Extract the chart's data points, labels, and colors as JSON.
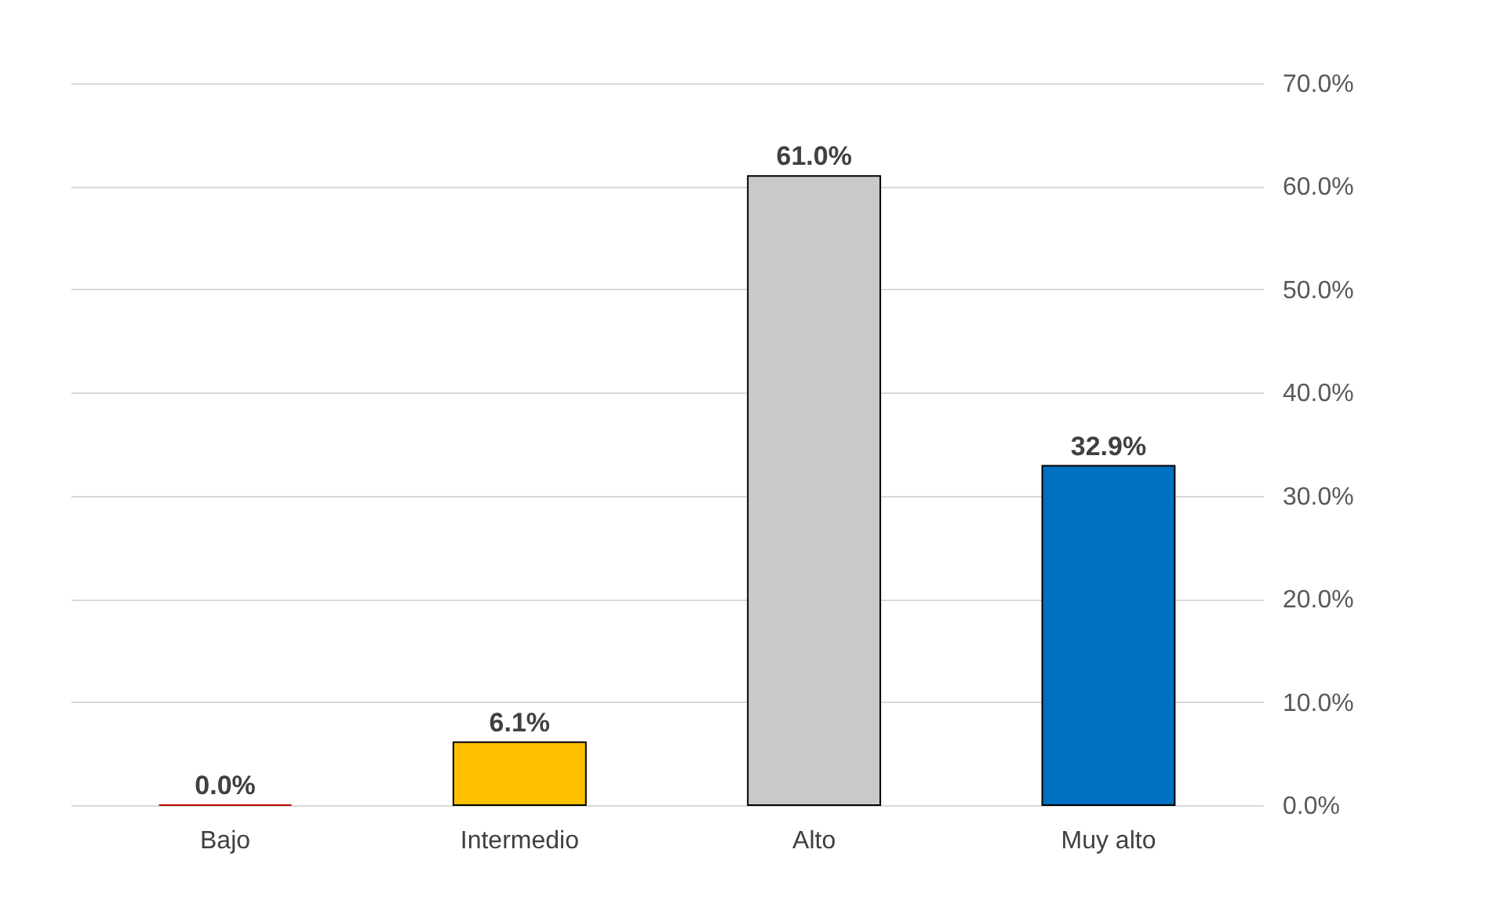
{
  "chart_data": {
    "type": "bar",
    "categories": [
      "Bajo",
      "Intermedio",
      "Alto",
      "Muy alto"
    ],
    "values": [
      0.0,
      6.1,
      61.0,
      32.9
    ],
    "colors": [
      "#c00000",
      "#ffc000",
      "#c9c9c9",
      "#0070c0"
    ],
    "value_labels": [
      "0.0%",
      "6.1%",
      "61.0%",
      "32.9%"
    ],
    "ylim": [
      0,
      70
    ],
    "yticks": [
      {
        "value": 0,
        "label": "0.0%"
      },
      {
        "value": 10,
        "label": "10.0%"
      },
      {
        "value": 20,
        "label": "20.0%"
      },
      {
        "value": 30,
        "label": "30.0%"
      },
      {
        "value": 40,
        "label": "40.0%"
      },
      {
        "value": 50,
        "label": "50.0%"
      },
      {
        "value": 60,
        "label": "60.0%"
      },
      {
        "value": 70,
        "label": "70.0%"
      }
    ],
    "grid": "y"
  }
}
